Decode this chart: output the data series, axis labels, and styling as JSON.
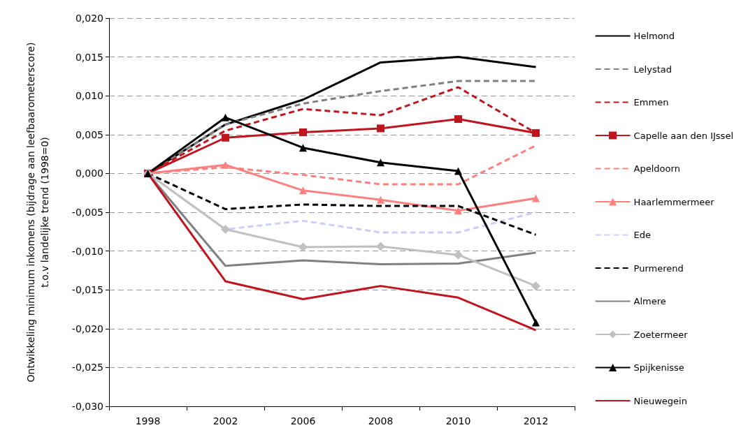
{
  "chart_data": {
    "type": "line",
    "ylabel": "Ontwikkeling minimum inkomens (bijdrage aan leefbaarometerscore)\nt.o.v landelijke trend (1998=0)",
    "categories": [
      "1998",
      "2002",
      "2006",
      "2008",
      "2010",
      "2012"
    ],
    "ylim": [
      -0.03,
      0.02
    ],
    "yticks": [
      {
        "value": -0.03,
        "label": "-0,030"
      },
      {
        "value": -0.025,
        "label": "-0,025"
      },
      {
        "value": -0.02,
        "label": "-0,020"
      },
      {
        "value": -0.015,
        "label": "-0,015"
      },
      {
        "value": -0.01,
        "label": "-0,010"
      },
      {
        "value": -0.005,
        "label": "-0,005"
      },
      {
        "value": 0,
        "label": "0,000"
      },
      {
        "value": 0.005,
        "label": "0,005"
      },
      {
        "value": 0.01,
        "label": "0,010"
      },
      {
        "value": 0.015,
        "label": "0,015"
      },
      {
        "value": 0.02,
        "label": "0,020"
      }
    ],
    "grid": "y",
    "legend": "right",
    "series": [
      {
        "name": "Helmond",
        "color": "#000000",
        "line_style": "solid",
        "marker": "none",
        "values": [
          0,
          0.0063,
          0.0095,
          0.0143,
          0.015,
          0.0137
        ]
      },
      {
        "name": "Lelystad",
        "color": "#808080",
        "line_style": "dashed",
        "marker": "none",
        "values": [
          0,
          0.0063,
          0.009,
          0.0106,
          0.0119,
          0.0119
        ]
      },
      {
        "name": "Emmen",
        "color": "#c0141e",
        "line_style": "dashed",
        "marker": "none",
        "values": [
          0,
          0.0055,
          0.0083,
          0.0075,
          0.0111,
          0.0052
        ]
      },
      {
        "name": "Capelle aan den IJssel",
        "color": "#c0141e",
        "line_style": "solid",
        "marker": "square",
        "values": [
          0,
          0.0046,
          0.0053,
          0.0058,
          0.007,
          0.0052
        ]
      },
      {
        "name": "Apeldoorn",
        "color": "#ff8080",
        "line_style": "dashed",
        "marker": "none",
        "values": [
          0,
          0.0008,
          -0.0002,
          -0.0014,
          -0.0014,
          0.0036
        ]
      },
      {
        "name": "Haarlemmermeer",
        "color": "#ff8080",
        "line_style": "solid",
        "marker": "triangle",
        "values": [
          0,
          0.0011,
          -0.0022,
          -0.0034,
          -0.0048,
          -0.0032
        ]
      },
      {
        "name": "Ede",
        "color": "#ccccff",
        "line_style": "dashed",
        "marker": "none",
        "values": [
          0,
          -0.0072,
          -0.0061,
          -0.0076,
          -0.0076,
          -0.005
        ]
      },
      {
        "name": "Purmerend",
        "color": "#000000",
        "line_style": "dashed",
        "marker": "none",
        "values": [
          0,
          -0.0046,
          -0.004,
          -0.0042,
          -0.0042,
          -0.0079
        ]
      },
      {
        "name": "Almere",
        "color": "#808080",
        "line_style": "solid",
        "marker": "none",
        "values": [
          0,
          -0.0119,
          -0.0112,
          -0.0117,
          -0.0116,
          -0.0102
        ]
      },
      {
        "name": "Zoetermeer",
        "color": "#c0c0c0",
        "line_style": "solid",
        "marker": "diamond",
        "values": [
          0,
          -0.0072,
          -0.0095,
          -0.0094,
          -0.0105,
          -0.0145
        ]
      },
      {
        "name": "Spijkenisse",
        "color": "#000000",
        "line_style": "solid",
        "marker": "triangle",
        "values": [
          0,
          0.0072,
          0.0033,
          0.0014,
          0.0003,
          -0.0192
        ]
      },
      {
        "name": "Nieuwegein",
        "color": "#c0141e",
        "line_style": "solid",
        "marker": "none",
        "values": [
          0,
          -0.0139,
          -0.0162,
          -0.0145,
          -0.016,
          -0.0202
        ]
      }
    ]
  }
}
